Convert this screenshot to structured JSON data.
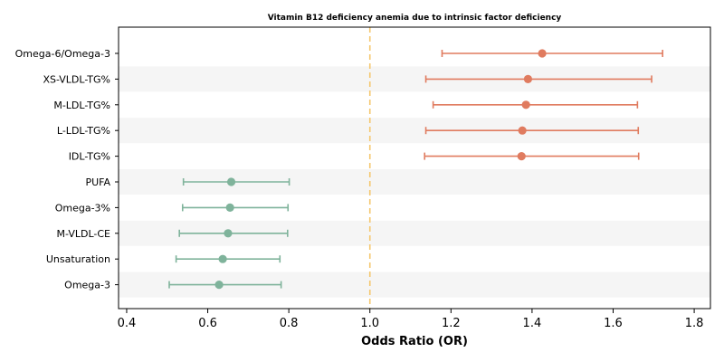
{
  "chart_data": {
    "type": "forest",
    "title": "Vitamin B12 deficiency anemia due to intrinsic factor deficiency",
    "xlabel": "Odds Ratio (OR)",
    "ylabel": "",
    "xlim": [
      0.38,
      1.84
    ],
    "xticks": [
      "0.4",
      "0.6",
      "0.8",
      "1.0",
      "1.2",
      "1.4",
      "1.6",
      "1.8"
    ],
    "reference_line": 1.0,
    "grid": false,
    "colors": {
      "risk": "#e07b5f",
      "protective": "#7fb39b",
      "reference": "#f5c76e",
      "band": "#f5f5f5"
    },
    "rows": [
      {
        "label": "Omega-6/Omega-3",
        "or": 1.425,
        "lower": 1.178,
        "upper": 1.722,
        "group": "risk"
      },
      {
        "label": "XS-VLDL-TG%",
        "or": 1.39,
        "lower": 1.138,
        "upper": 1.695,
        "group": "risk"
      },
      {
        "label": "M-LDL-TG%",
        "or": 1.385,
        "lower": 1.156,
        "upper": 1.66,
        "group": "risk"
      },
      {
        "label": "L-LDL-TG%",
        "or": 1.376,
        "lower": 1.138,
        "upper": 1.662,
        "group": "risk"
      },
      {
        "label": "IDL-TG%",
        "or": 1.374,
        "lower": 1.135,
        "upper": 1.663,
        "group": "risk"
      },
      {
        "label": "PUFA",
        "or": 0.658,
        "lower": 0.54,
        "upper": 0.801,
        "group": "protective"
      },
      {
        "label": "Omega-3%",
        "or": 0.655,
        "lower": 0.538,
        "upper": 0.798,
        "group": "protective"
      },
      {
        "label": "M-VLDL-CE",
        "or": 0.65,
        "lower": 0.53,
        "upper": 0.797,
        "group": "protective"
      },
      {
        "label": "Unsaturation",
        "or": 0.637,
        "lower": 0.522,
        "upper": 0.778,
        "group": "protective"
      },
      {
        "label": "Omega-3",
        "or": 0.628,
        "lower": 0.505,
        "upper": 0.781,
        "group": "protective"
      }
    ]
  }
}
